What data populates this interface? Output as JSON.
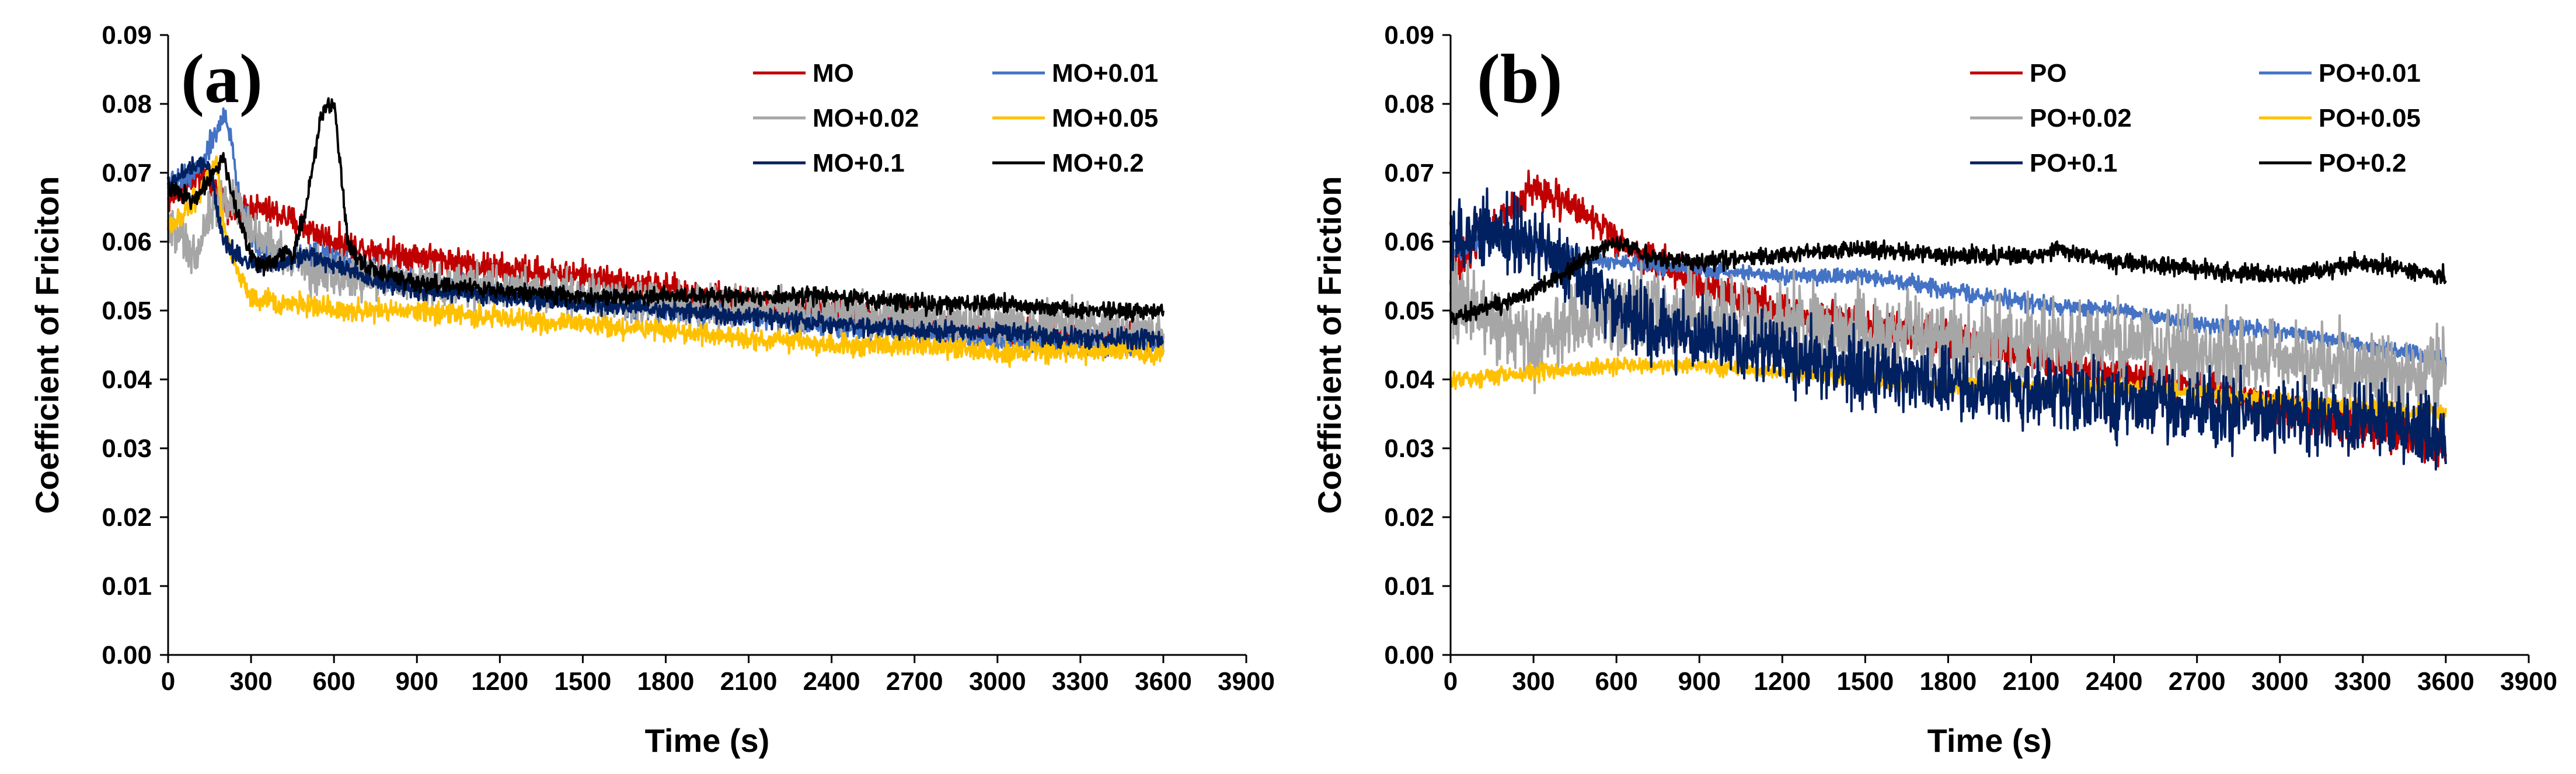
{
  "chart_data": [
    {
      "type": "line",
      "panel_label": "(a)",
      "xlabel": "Time (s)",
      "ylabel": "Coefficient of Friciton",
      "xlim": [
        0,
        3900
      ],
      "ylim": [
        0,
        0.09
      ],
      "x_ticks": [
        "0",
        "300",
        "600",
        "900",
        "1200",
        "1500",
        "1800",
        "2100",
        "2400",
        "2700",
        "3000",
        "3300",
        "3600",
        "3900"
      ],
      "y_ticks": [
        "0.00",
        "0.01",
        "0.02",
        "0.03",
        "0.04",
        "0.05",
        "0.06",
        "0.07",
        "0.08",
        "0.09"
      ],
      "grid": false,
      "legend_position": "top-right",
      "series": [
        {
          "name": "MO",
          "color": "#c00000",
          "noise": 0.0015,
          "x": [
            0,
            50,
            100,
            150,
            200,
            250,
            300,
            400,
            500,
            600,
            700,
            900,
            1200,
            1500,
            1800,
            2100,
            2400,
            2700,
            3000,
            3300,
            3600
          ],
          "y": [
            0.066,
            0.068,
            0.069,
            0.069,
            0.066,
            0.064,
            0.065,
            0.064,
            0.062,
            0.06,
            0.059,
            0.058,
            0.056,
            0.055,
            0.053,
            0.051,
            0.05,
            0.048,
            0.047,
            0.046,
            0.046
          ]
        },
        {
          "name": "MO+0.01",
          "color": "#4472c4",
          "noise": 0.0012,
          "x": [
            0,
            50,
            100,
            150,
            200,
            225,
            250,
            300,
            400,
            500,
            600,
            700,
            900,
            1200,
            1500,
            1800,
            2100,
            2400,
            2700,
            3000,
            3300,
            3600
          ],
          "y": [
            0.068,
            0.069,
            0.07,
            0.074,
            0.078,
            0.076,
            0.068,
            0.06,
            0.058,
            0.058,
            0.058,
            0.056,
            0.054,
            0.053,
            0.052,
            0.05,
            0.049,
            0.048,
            0.047,
            0.046,
            0.045,
            0.045
          ]
        },
        {
          "name": "MO+0.02",
          "color": "#a6a6a6",
          "noise": 0.0022,
          "x": [
            0,
            50,
            100,
            150,
            200,
            250,
            300,
            400,
            500,
            600,
            700,
            900,
            1200,
            1500,
            1800,
            2100,
            2400,
            2700,
            3000,
            3300,
            3600
          ],
          "y": [
            0.063,
            0.06,
            0.058,
            0.064,
            0.066,
            0.066,
            0.062,
            0.058,
            0.056,
            0.055,
            0.055,
            0.054,
            0.053,
            0.052,
            0.051,
            0.05,
            0.05,
            0.049,
            0.048,
            0.048,
            0.047
          ]
        },
        {
          "name": "MO+0.05",
          "color": "#ffc000",
          "noise": 0.0011,
          "x": [
            0,
            50,
            100,
            150,
            175,
            200,
            250,
            300,
            400,
            500,
            600,
            700,
            900,
            1200,
            1500,
            1800,
            2100,
            2400,
            2700,
            3000,
            3300,
            3600
          ],
          "y": [
            0.062,
            0.064,
            0.066,
            0.07,
            0.072,
            0.062,
            0.056,
            0.052,
            0.051,
            0.051,
            0.05,
            0.05,
            0.05,
            0.049,
            0.048,
            0.047,
            0.046,
            0.045,
            0.045,
            0.044,
            0.044,
            0.044
          ]
        },
        {
          "name": "MO+0.1",
          "color": "#002060",
          "noise": 0.0009,
          "x": [
            0,
            50,
            100,
            150,
            200,
            250,
            300,
            400,
            500,
            600,
            700,
            900,
            1200,
            1500,
            1800,
            2100,
            2400,
            2700,
            3000,
            3300,
            3600
          ],
          "y": [
            0.068,
            0.07,
            0.071,
            0.071,
            0.06,
            0.058,
            0.057,
            0.057,
            0.058,
            0.057,
            0.055,
            0.053,
            0.052,
            0.051,
            0.05,
            0.049,
            0.048,
            0.047,
            0.047,
            0.046,
            0.046
          ]
        },
        {
          "name": "MO+0.2",
          "color": "#000000",
          "noise": 0.0009,
          "x": [
            0,
            50,
            100,
            150,
            200,
            250,
            300,
            350,
            400,
            450,
            500,
            550,
            575,
            600,
            625,
            650,
            700,
            800,
            900,
            1200,
            1500,
            1800,
            2100,
            2400,
            2700,
            3000,
            3300,
            3600
          ],
          "y": [
            0.068,
            0.067,
            0.066,
            0.069,
            0.072,
            0.064,
            0.058,
            0.056,
            0.058,
            0.058,
            0.065,
            0.078,
            0.08,
            0.08,
            0.07,
            0.06,
            0.057,
            0.055,
            0.054,
            0.053,
            0.052,
            0.052,
            0.052,
            0.052,
            0.051,
            0.051,
            0.05,
            0.05
          ]
        }
      ]
    },
    {
      "type": "line",
      "panel_label": "(b)",
      "xlabel": "Time (s)",
      "ylabel": "Coefficient of Friction",
      "xlim": [
        0,
        3900
      ],
      "ylim": [
        0,
        0.09
      ],
      "x_ticks": [
        "0",
        "300",
        "600",
        "900",
        "1200",
        "1500",
        "1800",
        "2100",
        "2400",
        "2700",
        "3000",
        "3300",
        "3600",
        "3900"
      ],
      "y_ticks": [
        "0.00",
        "0.01",
        "0.02",
        "0.03",
        "0.04",
        "0.05",
        "0.06",
        "0.07",
        "0.08",
        "0.09"
      ],
      "grid": false,
      "legend_position": "top-right",
      "series": [
        {
          "name": "PO",
          "color": "#c00000",
          "noise": 0.0018,
          "x": [
            0,
            100,
            200,
            300,
            400,
            500,
            600,
            700,
            900,
            1200,
            1500,
            1800,
            2100,
            2400,
            2700,
            3000,
            3300,
            3600
          ],
          "y": [
            0.055,
            0.06,
            0.064,
            0.068,
            0.066,
            0.064,
            0.06,
            0.058,
            0.054,
            0.05,
            0.048,
            0.046,
            0.043,
            0.041,
            0.039,
            0.036,
            0.033,
            0.03
          ]
        },
        {
          "name": "PO+0.01",
          "color": "#4472c4",
          "noise": 0.0008,
          "x": [
            0,
            100,
            200,
            300,
            400,
            600,
            900,
            1200,
            1500,
            1800,
            2100,
            2400,
            2700,
            3000,
            3300,
            3600
          ],
          "y": [
            0.058,
            0.06,
            0.061,
            0.06,
            0.058,
            0.057,
            0.056,
            0.055,
            0.055,
            0.053,
            0.051,
            0.05,
            0.048,
            0.047,
            0.045,
            0.043
          ]
        },
        {
          "name": "PO+0.02",
          "color": "#a6a6a6",
          "noise": 0.004,
          "x": [
            0,
            150,
            300,
            450,
            600,
            900,
            1200,
            1500,
            1800,
            2100,
            2400,
            2700,
            3000,
            3300,
            3600
          ],
          "y": [
            0.052,
            0.049,
            0.045,
            0.048,
            0.05,
            0.049,
            0.048,
            0.047,
            0.046,
            0.045,
            0.045,
            0.044,
            0.043,
            0.041,
            0.04
          ]
        },
        {
          "name": "PO+0.05",
          "color": "#ffc000",
          "noise": 0.0008,
          "x": [
            0,
            300,
            600,
            900,
            1200,
            1500,
            1800,
            2100,
            2400,
            2700,
            3000,
            3300,
            3600
          ],
          "y": [
            0.04,
            0.041,
            0.042,
            0.042,
            0.041,
            0.04,
            0.039,
            0.039,
            0.039,
            0.038,
            0.037,
            0.036,
            0.035
          ]
        },
        {
          "name": "PO+0.1",
          "color": "#002060",
          "noise": 0.0035,
          "x": [
            0,
            100,
            200,
            300,
            400,
            500,
            600,
            700,
            900,
            1200,
            1500,
            1800,
            2100,
            2400,
            2700,
            3000,
            3300,
            3600
          ],
          "y": [
            0.06,
            0.062,
            0.061,
            0.06,
            0.057,
            0.053,
            0.05,
            0.048,
            0.046,
            0.044,
            0.041,
            0.039,
            0.038,
            0.037,
            0.036,
            0.035,
            0.034,
            0.032
          ]
        },
        {
          "name": "PO+0.2",
          "color": "#000000",
          "noise": 0.0009,
          "x": [
            0,
            200,
            400,
            500,
            600,
            700,
            900,
            1200,
            1500,
            1800,
            2100,
            2200,
            2400,
            2700,
            3000,
            3300,
            3600
          ],
          "y": [
            0.049,
            0.051,
            0.055,
            0.058,
            0.06,
            0.058,
            0.057,
            0.058,
            0.059,
            0.058,
            0.058,
            0.059,
            0.057,
            0.056,
            0.055,
            0.057,
            0.055
          ]
        }
      ]
    }
  ]
}
